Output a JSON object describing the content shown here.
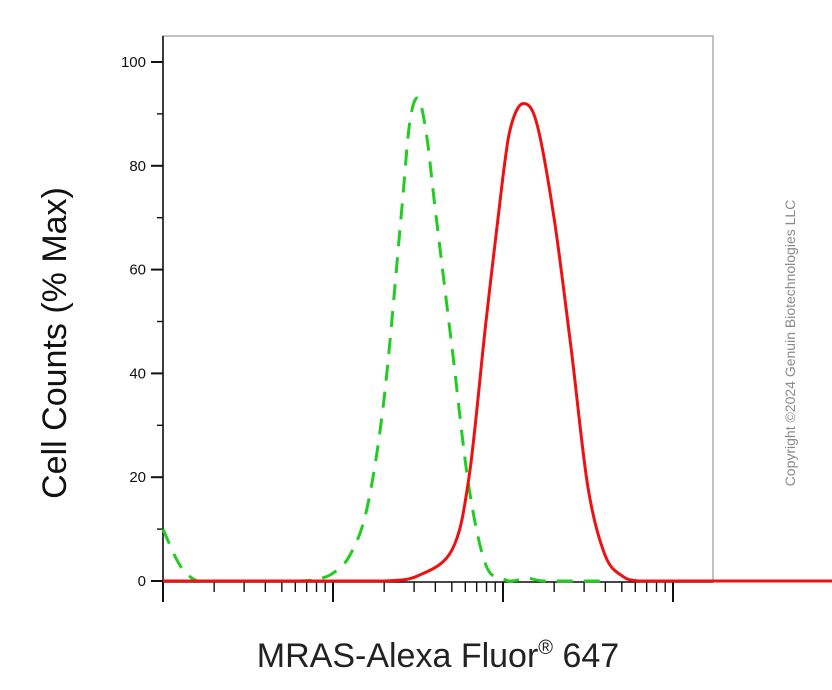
{
  "chart_data": {
    "type": "line",
    "title": "",
    "xlabel": "MRAS-Alexa Fluor",
    "xlabel_superscript": "®",
    "xlabel_suffix": " 647",
    "ylabel": "Cell Counts (% Max)",
    "x_scale": "log",
    "ylim": [
      0,
      100
    ],
    "yticks": [
      "0",
      "20",
      "40",
      "60",
      "80",
      "100"
    ],
    "grid": false,
    "legend": "none",
    "series": [
      {
        "color": "#22cc22",
        "style": "dashed",
        "points": [
          [
            0,
            10
          ],
          [
            0.1,
            3
          ],
          [
            0.2,
            0
          ],
          [
            0.3,
            0
          ],
          [
            0.4,
            0
          ],
          [
            0.5,
            0
          ],
          [
            0.6,
            0
          ],
          [
            0.7,
            0
          ],
          [
            0.8,
            0
          ],
          [
            0.9,
            0.3
          ],
          [
            1.0,
            1.5
          ],
          [
            1.1,
            5
          ],
          [
            1.2,
            14
          ],
          [
            1.3,
            35
          ],
          [
            1.4,
            70
          ],
          [
            1.45,
            88
          ],
          [
            1.5,
            93
          ],
          [
            1.55,
            86
          ],
          [
            1.6,
            72
          ],
          [
            1.7,
            45
          ],
          [
            1.8,
            18
          ],
          [
            1.9,
            3
          ],
          [
            2.0,
            0.5
          ],
          [
            2.05,
            0
          ],
          [
            2.15,
            0.5
          ],
          [
            2.25,
            0
          ],
          [
            2.6,
            0
          ]
        ]
      },
      {
        "color": "#ee1111",
        "style": "solid",
        "points": [
          [
            0,
            0
          ],
          [
            0.5,
            0
          ],
          [
            1.0,
            0
          ],
          [
            1.3,
            0
          ],
          [
            1.5,
            1
          ],
          [
            1.7,
            6
          ],
          [
            1.8,
            20
          ],
          [
            1.9,
            50
          ],
          [
            2.0,
            78
          ],
          [
            2.05,
            88
          ],
          [
            2.12,
            92
          ],
          [
            2.2,
            88
          ],
          [
            2.3,
            70
          ],
          [
            2.4,
            45
          ],
          [
            2.5,
            18
          ],
          [
            2.6,
            5
          ],
          [
            2.7,
            1
          ],
          [
            2.8,
            0
          ],
          [
            3.0,
            0
          ],
          [
            3.5,
            0
          ],
          [
            4.0,
            0
          ],
          [
            4.4,
            0
          ],
          [
            4.65,
            0.2
          ]
        ]
      }
    ]
  },
  "watermark": "Copyright ©2024 Genuin Biotechnologies LLC"
}
